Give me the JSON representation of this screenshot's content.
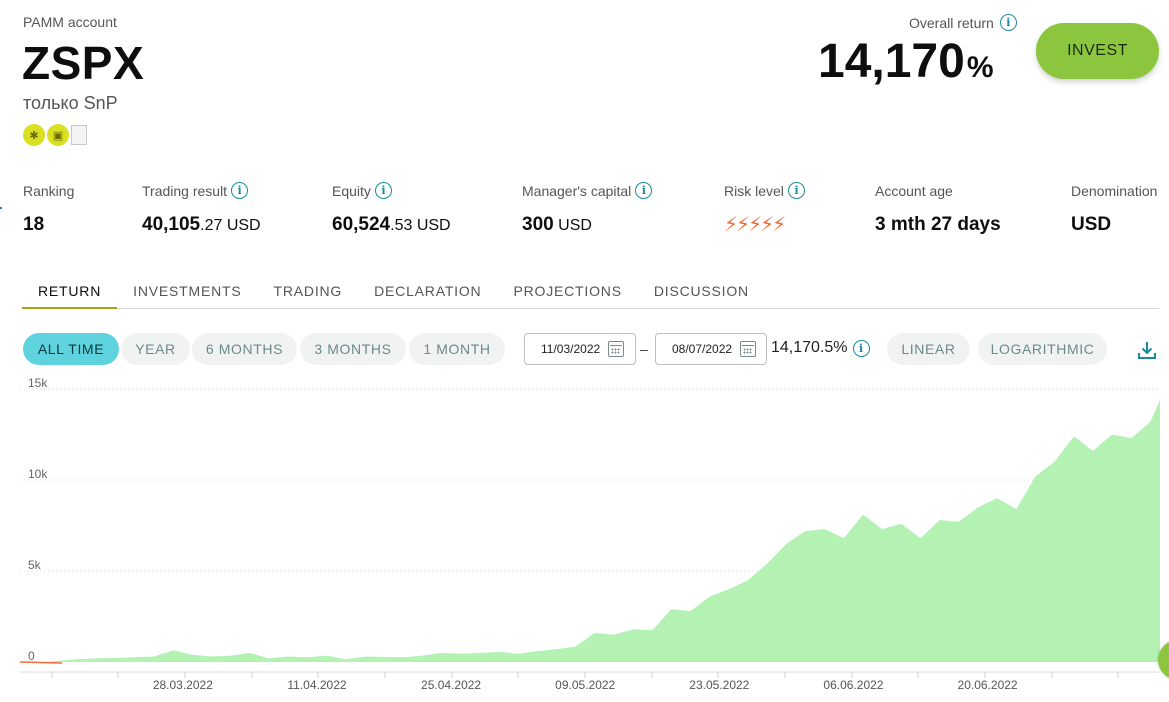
{
  "header": {
    "pamm_label": "PAMM account",
    "account_name": "ZSPX",
    "description": "только SnP",
    "badges": [
      "runner-icon",
      "shield-icon",
      "broken-image"
    ],
    "overall_return_label": "Overall return",
    "overall_return_value": "14,170",
    "overall_return_unit": "%",
    "invest_label": "INVEST"
  },
  "stats": {
    "ranking": {
      "label": "Ranking",
      "value": "18"
    },
    "trading_result": {
      "label": "Trading result",
      "value_main": "40,105",
      "value_rest": ".27 USD"
    },
    "equity": {
      "label": "Equity",
      "value_main": "60,524",
      "value_rest": ".53 USD"
    },
    "managers_capital": {
      "label": "Manager's capital",
      "value_main": "300",
      "value_rest": " USD"
    },
    "risk_level": {
      "label": "Risk level",
      "bolts": "⚡⚡⚡⚡⚡",
      "level": 5
    },
    "account_age": {
      "label": "Account age",
      "value": "3 mth 27 days"
    },
    "denomination": {
      "label": "Denomination",
      "value": "USD"
    }
  },
  "tabs": [
    "RETURN",
    "INVESTMENTS",
    "TRADING",
    "DECLARATION",
    "PROJECTIONS",
    "DISCUSSION"
  ],
  "active_tab": "RETURN",
  "periods": [
    "ALL TIME",
    "YEAR",
    "6 MONTHS",
    "3 MONTHS",
    "1 MONTH"
  ],
  "active_period": "ALL TIME",
  "date_range": {
    "from": "11/03/2022",
    "separator": "–",
    "to": "08/07/2022",
    "return": "14,170.5%"
  },
  "scale_options": [
    "LINEAR",
    "LOGARITHMIC"
  ],
  "colors": {
    "accent": "#8cc63e",
    "active_pill": "#5ed3de",
    "area_fill": "#b3f2b3",
    "risk": "#f26b3a",
    "info": "#1a8b9d"
  },
  "chart_data": {
    "type": "area",
    "ylabel": "",
    "ylim": [
      0,
      15000
    ],
    "yticks": [
      "15k",
      "10k",
      "5k",
      "0"
    ],
    "xticks": [
      "28.03.2022",
      "11.04.2022",
      "25.04.2022",
      "09.05.2022",
      "23.05.2022",
      "06.06.2022",
      "20.06.2022"
    ],
    "x": [
      "2022-03-11",
      "2022-03-13",
      "2022-03-15",
      "2022-03-17",
      "2022-03-19",
      "2022-03-21",
      "2022-03-23",
      "2022-03-25",
      "2022-03-27",
      "2022-03-29",
      "2022-03-31",
      "2022-04-02",
      "2022-04-04",
      "2022-04-06",
      "2022-04-08",
      "2022-04-10",
      "2022-04-12",
      "2022-04-14",
      "2022-04-16",
      "2022-04-18",
      "2022-04-20",
      "2022-04-22",
      "2022-04-24",
      "2022-04-26",
      "2022-04-28",
      "2022-04-30",
      "2022-05-02",
      "2022-05-04",
      "2022-05-06",
      "2022-05-08",
      "2022-05-10",
      "2022-05-12",
      "2022-05-14",
      "2022-05-16",
      "2022-05-18",
      "2022-05-20",
      "2022-05-22",
      "2022-05-24",
      "2022-05-26",
      "2022-05-28",
      "2022-05-30",
      "2022-06-01",
      "2022-06-03",
      "2022-06-05",
      "2022-06-07",
      "2022-06-09",
      "2022-06-11",
      "2022-06-13",
      "2022-06-15",
      "2022-06-17",
      "2022-06-19",
      "2022-06-21",
      "2022-06-23",
      "2022-06-25",
      "2022-06-27",
      "2022-06-29",
      "2022-07-01",
      "2022-07-03",
      "2022-07-05",
      "2022-07-07",
      "2022-07-08"
    ],
    "values": [
      0,
      -30,
      60,
      150,
      200,
      220,
      270,
      300,
      650,
      400,
      300,
      350,
      500,
      200,
      300,
      250,
      350,
      150,
      300,
      280,
      250,
      350,
      500,
      450,
      500,
      550,
      450,
      600,
      700,
      850,
      1600,
      1500,
      1800,
      1750,
      2900,
      2800,
      3600,
      4000,
      4500,
      5400,
      6500,
      7200,
      7300,
      6800,
      8100,
      7300,
      7600,
      6800,
      7800,
      7700,
      8500,
      9000,
      8400,
      10200,
      11000,
      12400,
      11600,
      12500,
      12300,
      13200,
      14400
    ]
  }
}
